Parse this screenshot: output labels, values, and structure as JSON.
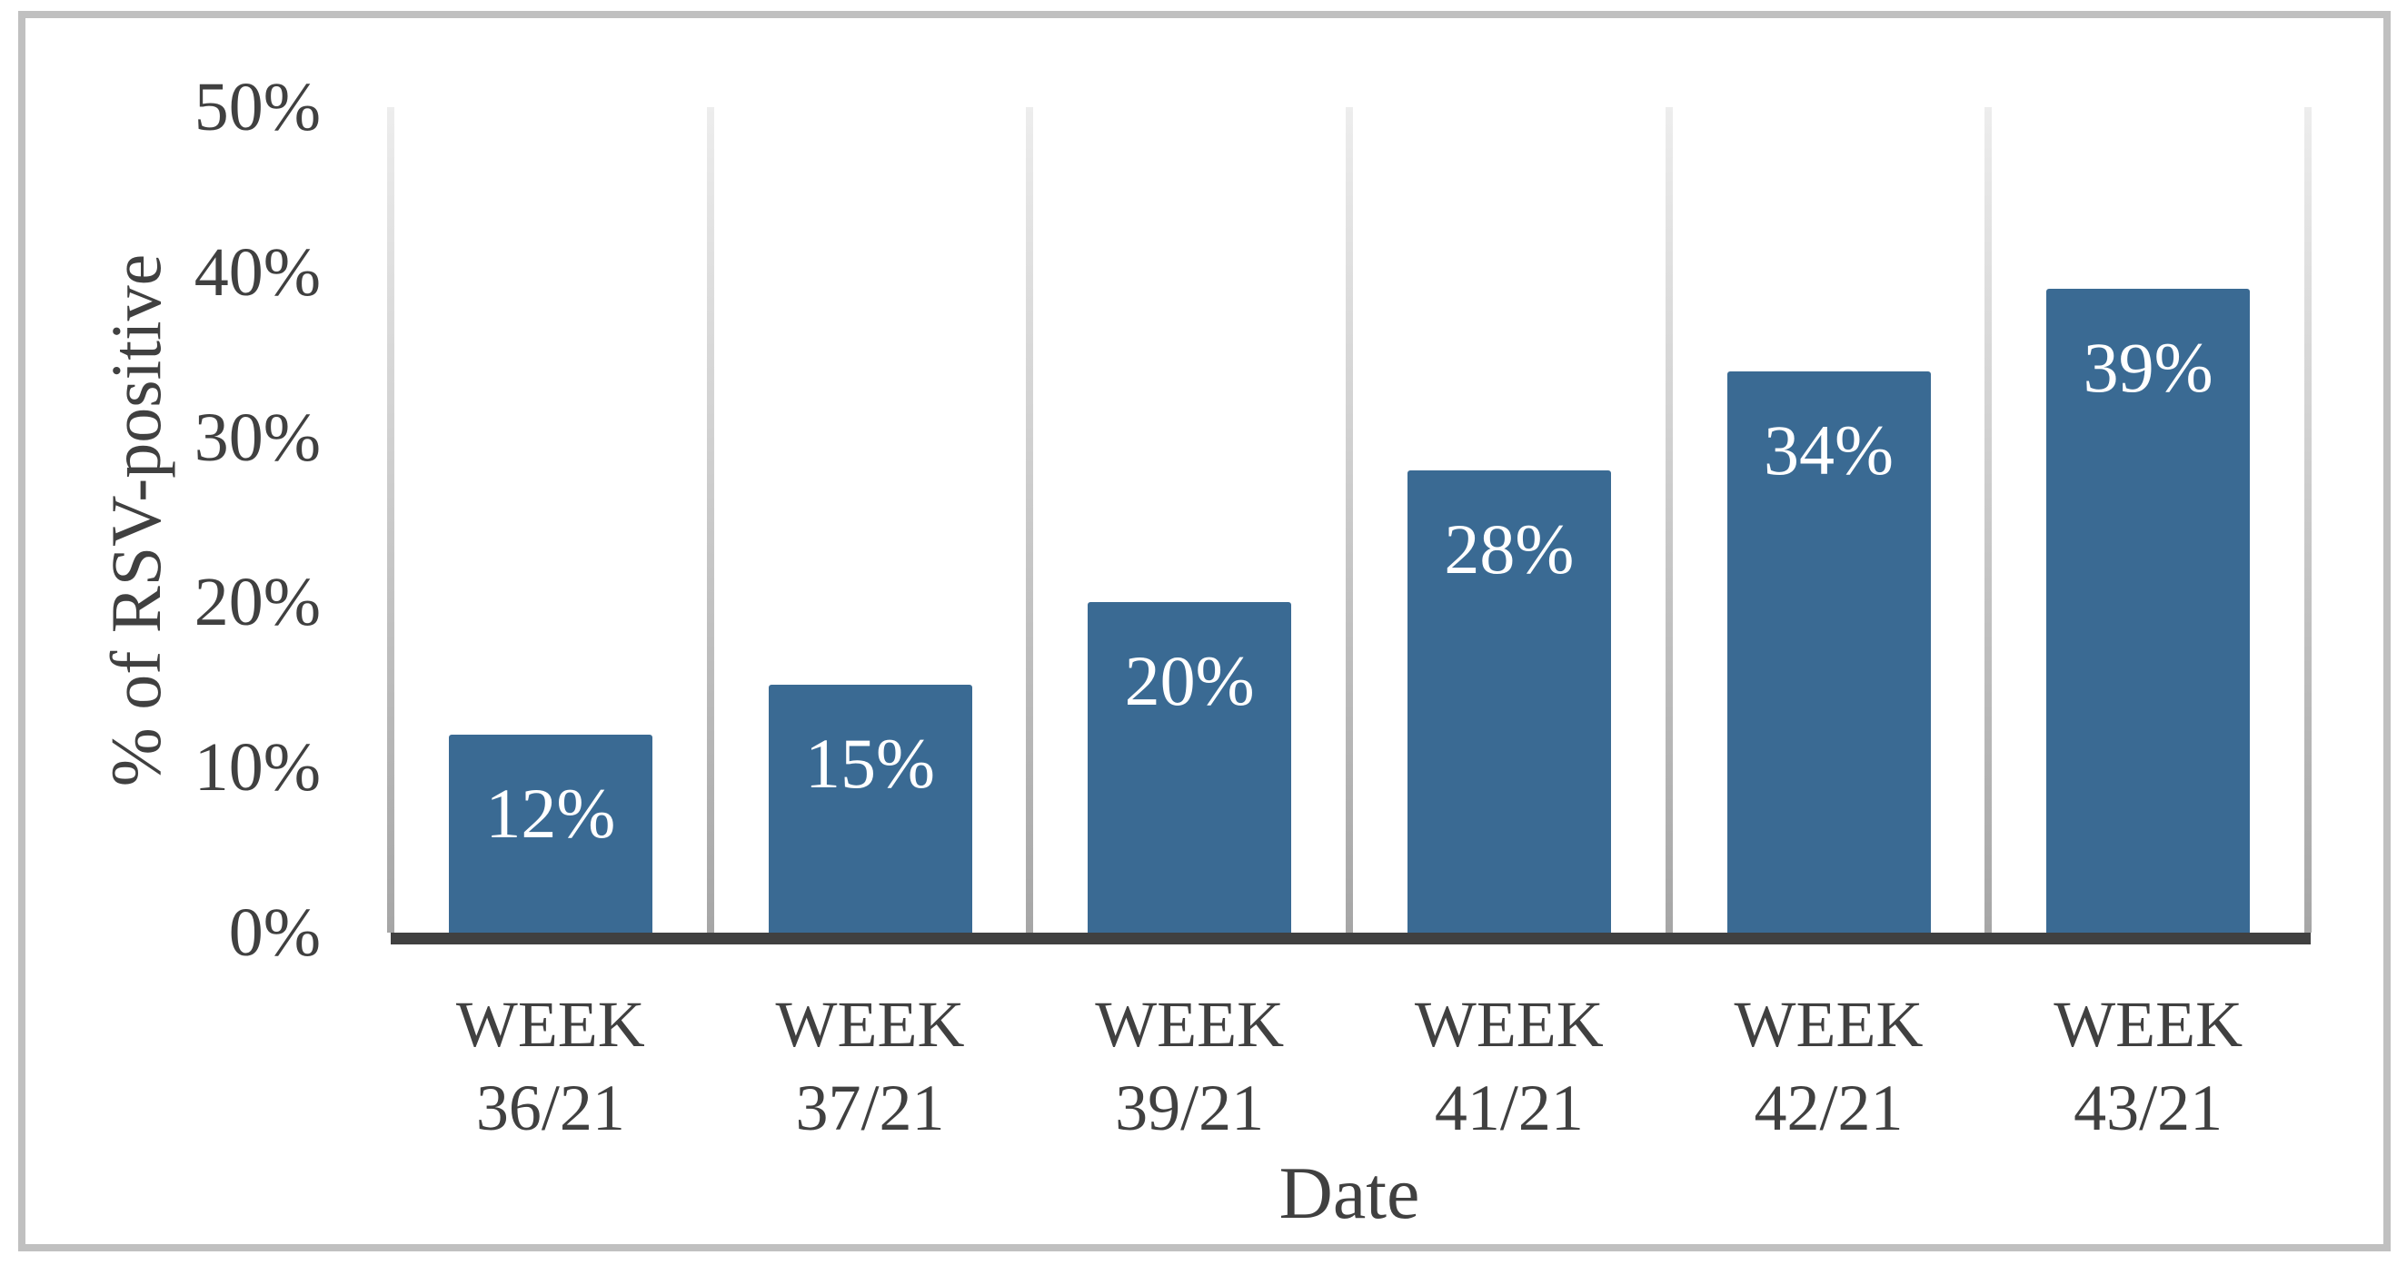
{
  "figure": {
    "border_color": "#c0c0c0",
    "background": "#ffffff"
  },
  "chart_data": {
    "type": "bar",
    "title": "",
    "xlabel": "Date",
    "ylabel": "% of RSV-positive",
    "categories": [
      [
        "WEEK",
        "36/21"
      ],
      [
        "WEEK",
        "37/21"
      ],
      [
        "WEEK",
        "39/21"
      ],
      [
        "WEEK",
        "41/21"
      ],
      [
        "WEEK",
        "42/21"
      ],
      [
        "WEEK",
        "43/21"
      ]
    ],
    "values": [
      12,
      15,
      20,
      28,
      34,
      39
    ],
    "bar_labels": [
      "12%",
      "15%",
      "20%",
      "28%",
      "34%",
      "39%"
    ],
    "ylim": [
      0,
      50
    ],
    "ytick_values": [
      0,
      10,
      20,
      30,
      40,
      50
    ],
    "ytick_labels": [
      "0%",
      "10%",
      "20%",
      "30%",
      "40%",
      "50%"
    ],
    "grid": "vertical-only",
    "legend": "none",
    "bar_label_position": "inside-end",
    "bar_color": "#3a6a93",
    "bar_label_color": "#ffffff",
    "axis_line_color": "#404040",
    "gridline_color_top": "#ededed",
    "gridline_color_bottom": "#a6a6a6",
    "text_color": "#404040"
  }
}
